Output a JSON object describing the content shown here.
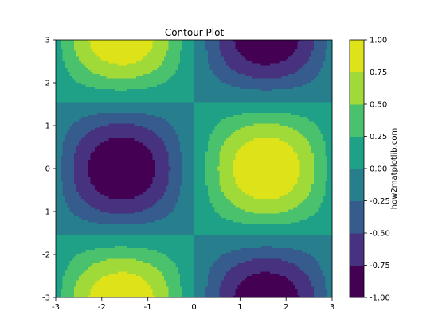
{
  "chart_data": {
    "type": "contour",
    "title": "Contour Plot",
    "function": "sin(x) * cos(y)",
    "xlim": [
      -3,
      3
    ],
    "ylim": [
      -3,
      3
    ],
    "x_ticks": [
      {
        "value": -3,
        "label": "-3"
      },
      {
        "value": -2,
        "label": "-2"
      },
      {
        "value": -1,
        "label": "-1"
      },
      {
        "value": 0,
        "label": "0"
      },
      {
        "value": 1,
        "label": "1"
      },
      {
        "value": 2,
        "label": "2"
      },
      {
        "value": 3,
        "label": "3"
      }
    ],
    "y_ticks": [
      {
        "value": -3,
        "label": "-3"
      },
      {
        "value": -2,
        "label": "-2"
      },
      {
        "value": -1,
        "label": "-1"
      },
      {
        "value": 0,
        "label": "0"
      },
      {
        "value": 1,
        "label": "1"
      },
      {
        "value": 2,
        "label": "2"
      },
      {
        "value": 3,
        "label": "3"
      }
    ],
    "levels": [
      -1.0,
      -0.75,
      -0.5,
      -0.25,
      0.0,
      0.25,
      0.5,
      0.75,
      1.0
    ],
    "level_labels": [
      "-1.00",
      "-0.75",
      "-0.50",
      "-0.25",
      "0.00",
      "0.25",
      "0.50",
      "0.75",
      "1.00"
    ],
    "colors": [
      "#440154",
      "#46327e",
      "#365c8d",
      "#277f8e",
      "#1fa187",
      "#4ac16d",
      "#a0da39",
      "#dde318"
    ],
    "colorbar_label": "how2matplotlib.com",
    "grid": false,
    "colorbar_position": "right"
  }
}
